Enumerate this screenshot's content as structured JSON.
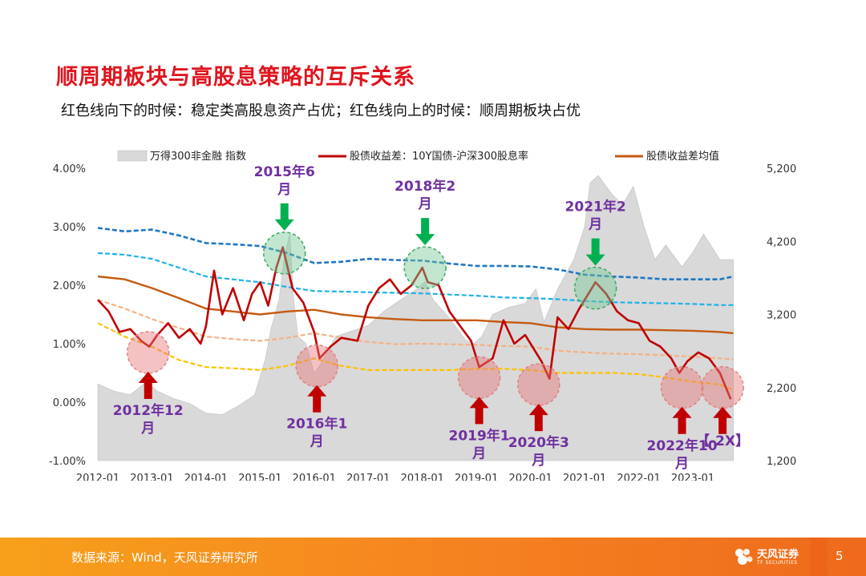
{
  "header": {
    "title": "顺周期板块与高股息策略的互斥关系",
    "subtitle": "红色线向下的时候：稳定类高股息资产占优；红色线向上的时候：顺周期板块占优"
  },
  "footer": {
    "source": "数据来源：Wind，天风证券研究所",
    "brand": "天风证券",
    "brand_en": "TF SECURITIES",
    "page": "5"
  },
  "colors": {
    "title": "#e0141e",
    "spread_line": "#c00000",
    "mean_line": "#c55a11",
    "index_area": "#d9d9d9",
    "band_outer": "#1f77c4",
    "band_inner": "#1eb2e8",
    "band_sd_low": "#f4b183",
    "band_low": "#ffc000",
    "annotation_text": "#7030a0",
    "arrow_up": "#c00000",
    "arrow_down": "#00b050",
    "footer": "#f58220"
  },
  "chart_data": {
    "type": "line",
    "legend": [
      {
        "label": "万得300非金融 指数",
        "style": "area"
      },
      {
        "label": "股债收益差：10Y国债-沪深300股息率",
        "style": "line"
      },
      {
        "label": "股债收益差均值",
        "style": "line"
      }
    ],
    "legend_position": "top",
    "x_ticks": [
      "2012-01",
      "2013-01",
      "2014-01",
      "2015-01",
      "2016-01",
      "2017-01",
      "2018-01",
      "2019-01",
      "2020-01",
      "2021-01",
      "2022-01",
      "2023-01"
    ],
    "y_left": {
      "ticks": [
        "4.00%",
        "3.00%",
        "2.00%",
        "1.00%",
        "0.00%",
        "-1.00%"
      ],
      "range": [
        -1.0,
        4.0
      ]
    },
    "y_right": {
      "ticks": [
        "5,200",
        "4,200",
        "3,200",
        "2,200",
        "1,200"
      ],
      "range": [
        1200,
        5200
      ]
    },
    "x_range": [
      2012.0,
      2023.8
    ],
    "series": [
      {
        "name": "万得300非金融 指数",
        "axis": "right",
        "type": "area",
        "x": [
          2012.0,
          2012.3,
          2012.6,
          2012.9,
          2013.1,
          2013.4,
          2013.7,
          2014.0,
          2014.3,
          2014.6,
          2014.9,
          2015.1,
          2015.2,
          2015.35,
          2015.45,
          2015.55,
          2015.62,
          2015.7,
          2015.85,
          2016.0,
          2016.1,
          2016.4,
          2016.8,
          2017.0,
          2017.3,
          2017.6,
          2017.9,
          2018.05,
          2018.2,
          2018.5,
          2018.8,
          2018.95,
          2019.1,
          2019.3,
          2019.6,
          2019.9,
          2020.1,
          2020.25,
          2020.5,
          2020.8,
          2021.0,
          2021.1,
          2021.25,
          2021.5,
          2021.7,
          2021.9,
          2022.1,
          2022.3,
          2022.5,
          2022.8,
          2023.0,
          2023.2,
          2023.5,
          2023.75
        ],
        "values": [
          2250,
          2150,
          2100,
          2280,
          2150,
          2050,
          1980,
          1850,
          1830,
          1950,
          2100,
          2600,
          3000,
          3400,
          4000,
          4300,
          3400,
          2900,
          2800,
          2400,
          2500,
          2900,
          3000,
          3050,
          3250,
          3400,
          3550,
          3650,
          3400,
          3150,
          2850,
          2800,
          2900,
          3200,
          3300,
          3350,
          3550,
          3100,
          3550,
          3950,
          4400,
          5000,
          5100,
          4850,
          4700,
          4950,
          4400,
          3950,
          4150,
          3850,
          4050,
          4300,
          3950,
          3950
        ]
      },
      {
        "name": "股债收益差：10Y国债-沪深300股息率",
        "axis": "left",
        "x": [
          2012.0,
          2012.2,
          2012.4,
          2012.6,
          2012.8,
          2012.95,
          2013.1,
          2013.3,
          2013.5,
          2013.7,
          2013.9,
          2014.0,
          2014.15,
          2014.3,
          2014.5,
          2014.7,
          2014.85,
          2015.0,
          2015.15,
          2015.3,
          2015.42,
          2015.6,
          2015.8,
          2016.0,
          2016.1,
          2016.3,
          2016.5,
          2016.8,
          2017.0,
          2017.2,
          2017.4,
          2017.6,
          2017.8,
          2018.0,
          2018.1,
          2018.3,
          2018.5,
          2018.7,
          2018.9,
          2019.05,
          2019.3,
          2019.5,
          2019.7,
          2019.9,
          2020.1,
          2020.2,
          2020.35,
          2020.5,
          2020.7,
          2020.9,
          2021.1,
          2021.2,
          2021.4,
          2021.6,
          2021.8,
          2022.0,
          2022.2,
          2022.4,
          2022.6,
          2022.75,
          2022.9,
          2023.1,
          2023.3,
          2023.5,
          2023.7
        ],
        "values": [
          1.75,
          1.55,
          1.2,
          1.25,
          1.05,
          0.95,
          1.15,
          1.35,
          1.1,
          1.25,
          1.0,
          1.3,
          2.25,
          1.5,
          1.95,
          1.4,
          1.85,
          2.05,
          1.65,
          2.3,
          2.65,
          1.95,
          1.7,
          1.2,
          0.75,
          0.95,
          1.1,
          1.05,
          1.65,
          1.95,
          2.1,
          1.85,
          2.0,
          2.3,
          2.05,
          2.0,
          1.55,
          1.3,
          1.05,
          0.6,
          0.75,
          1.4,
          1.0,
          1.15,
          0.85,
          0.7,
          0.4,
          1.45,
          1.25,
          1.6,
          1.9,
          2.05,
          1.85,
          1.55,
          1.4,
          1.35,
          1.05,
          0.95,
          0.75,
          0.5,
          0.7,
          0.85,
          0.75,
          0.5,
          0.05
        ]
      },
      {
        "name": "股债收益差均值",
        "axis": "left",
        "x": [
          2012.0,
          2012.5,
          2013.0,
          2013.5,
          2014.0,
          2014.5,
          2015.0,
          2015.5,
          2016.0,
          2016.5,
          2017.0,
          2017.5,
          2018.0,
          2018.5,
          2019.0,
          2019.5,
          2020.0,
          2020.5,
          2021.0,
          2021.5,
          2022.0,
          2022.5,
          2023.0,
          2023.5,
          2023.75
        ],
        "values": [
          2.15,
          2.1,
          1.95,
          1.78,
          1.6,
          1.55,
          1.5,
          1.55,
          1.58,
          1.5,
          1.45,
          1.42,
          1.4,
          1.4,
          1.4,
          1.37,
          1.35,
          1.28,
          1.25,
          1.24,
          1.24,
          1.23,
          1.22,
          1.2,
          1.18
        ]
      },
      {
        "name": "",
        "axis": "left",
        "style": "dashed-outer-upper",
        "x": [
          2012.0,
          2012.5,
          2013.0,
          2013.5,
          2014.0,
          2014.5,
          2015.0,
          2015.5,
          2016.0,
          2016.5,
          2017.0,
          2017.5,
          2018.0,
          2018.5,
          2019.0,
          2019.5,
          2020.0,
          2020.5,
          2021.0,
          2021.5,
          2022.0,
          2022.5,
          2023.0,
          2023.5,
          2023.75
        ],
        "values": [
          2.98,
          2.92,
          2.95,
          2.85,
          2.72,
          2.7,
          2.67,
          2.55,
          2.38,
          2.4,
          2.45,
          2.43,
          2.42,
          2.37,
          2.33,
          2.33,
          2.32,
          2.27,
          2.18,
          2.15,
          2.13,
          2.1,
          2.1,
          2.1,
          2.15
        ]
      },
      {
        "name": "",
        "axis": "left",
        "style": "dashed-inner-upper",
        "x": [
          2012.0,
          2012.5,
          2013.0,
          2013.5,
          2014.0,
          2014.5,
          2015.0,
          2015.5,
          2016.0,
          2016.5,
          2017.0,
          2017.5,
          2018.0,
          2018.5,
          2019.0,
          2019.5,
          2020.0,
          2020.5,
          2021.0,
          2021.5,
          2022.0,
          2022.5,
          2023.0,
          2023.5,
          2023.75
        ],
        "values": [
          2.55,
          2.52,
          2.45,
          2.3,
          2.15,
          2.1,
          2.05,
          1.97,
          1.9,
          1.89,
          1.88,
          1.87,
          1.86,
          1.84,
          1.82,
          1.79,
          1.78,
          1.76,
          1.73,
          1.71,
          1.7,
          1.69,
          1.68,
          1.66,
          1.66
        ]
      },
      {
        "name": "",
        "axis": "left",
        "style": "dashed-inner-lower",
        "x": [
          2012.0,
          2012.5,
          2013.0,
          2013.5,
          2014.0,
          2014.5,
          2015.0,
          2015.5,
          2016.0,
          2016.5,
          2017.0,
          2017.5,
          2018.0,
          2018.5,
          2019.0,
          2019.5,
          2020.0,
          2020.5,
          2021.0,
          2021.5,
          2022.0,
          2022.5,
          2023.0,
          2023.5,
          2023.75
        ],
        "values": [
          1.75,
          1.6,
          1.42,
          1.27,
          1.12,
          1.08,
          1.05,
          1.1,
          1.18,
          1.1,
          1.03,
          0.99,
          1.0,
          0.99,
          0.98,
          0.96,
          0.95,
          0.88,
          0.85,
          0.83,
          0.82,
          0.8,
          0.78,
          0.75,
          0.73
        ]
      },
      {
        "name": "",
        "axis": "left",
        "style": "dashed-outer-lower",
        "x": [
          2012.0,
          2012.5,
          2013.0,
          2013.5,
          2014.0,
          2014.5,
          2015.0,
          2015.5,
          2016.0,
          2016.5,
          2017.0,
          2017.5,
          2018.0,
          2018.5,
          2019.0,
          2019.5,
          2020.0,
          2020.5,
          2021.0,
          2021.5,
          2022.0,
          2022.5,
          2023.0,
          2023.5,
          2023.75
        ],
        "values": [
          1.35,
          1.12,
          0.95,
          0.72,
          0.6,
          0.58,
          0.55,
          0.62,
          0.75,
          0.62,
          0.55,
          0.55,
          0.55,
          0.55,
          0.57,
          0.57,
          0.55,
          0.5,
          0.5,
          0.5,
          0.48,
          0.42,
          0.35,
          0.3,
          0.2
        ]
      }
    ],
    "annotations": [
      {
        "label": "2012年12月",
        "x": 2012.93,
        "y": 0.85,
        "arrow": "up",
        "label_pos": "below"
      },
      {
        "label": "2015年6月",
        "x": 2015.45,
        "y": 2.55,
        "arrow": "down",
        "label_pos": "above"
      },
      {
        "label": "2016年1月",
        "x": 2016.05,
        "y": 0.62,
        "arrow": "up",
        "label_pos": "below"
      },
      {
        "label": "2018年2月",
        "x": 2018.05,
        "y": 2.3,
        "arrow": "down",
        "label_pos": "above"
      },
      {
        "label": "2019年1月",
        "x": 2019.05,
        "y": 0.42,
        "arrow": "up",
        "label_pos": "below"
      },
      {
        "label": "2020年3月",
        "x": 2020.15,
        "y": 0.3,
        "arrow": "up",
        "label_pos": "below"
      },
      {
        "label": "2021年2月",
        "x": 2021.2,
        "y": 1.95,
        "arrow": "down",
        "label_pos": "above"
      },
      {
        "label": "2022年10月",
        "x": 2022.8,
        "y": 0.25,
        "arrow": "up",
        "label_pos": "below"
      },
      {
        "label": "【-2X】",
        "x": 2023.55,
        "y": 0.25,
        "arrow": "up",
        "label_pos": "below"
      }
    ]
  }
}
